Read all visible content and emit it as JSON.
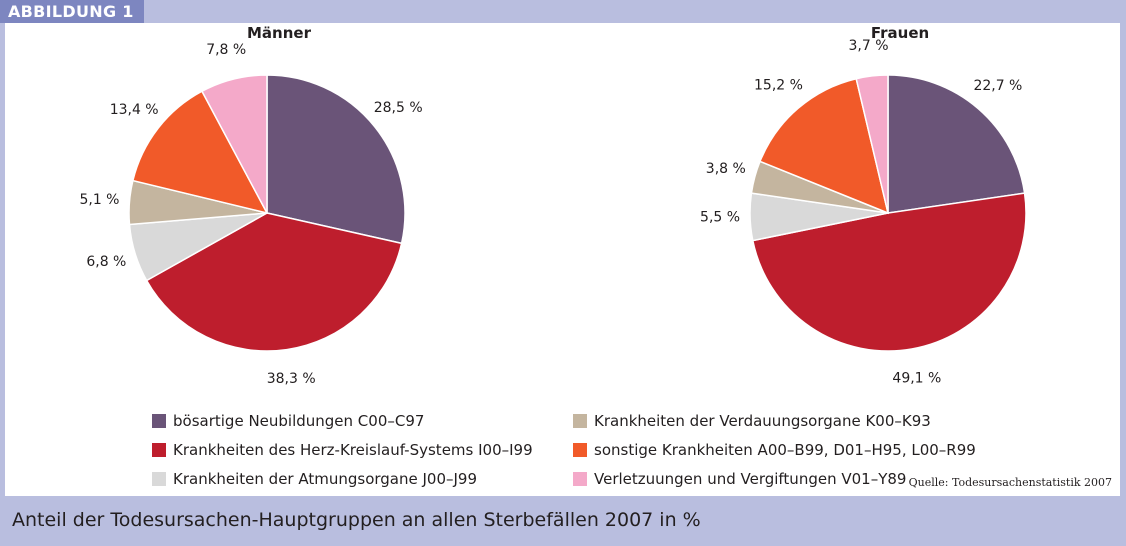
{
  "badge": "ABBILDUNG 1",
  "caption": "Anteil der Todesursachen-Hauptgruppen an allen Sterbefällen 2007 in %",
  "source": "Quelle: Todesursachenstatistik 2007",
  "chart_data": [
    {
      "type": "pie",
      "title": "Männer",
      "unit": "%",
      "slices": [
        {
          "category": "bösartige Neubildungen C00–C97",
          "value": 28.5,
          "label": "28,5 %"
        },
        {
          "category": "Krankheiten des Herz-Kreislauf-Systems I00–I99",
          "value": 38.3,
          "label": "38,3 %"
        },
        {
          "category": "Krankheiten der Atmungsorgane J00–J99",
          "value": 6.8,
          "label": "6,8 %"
        },
        {
          "category": "Krankheiten der Verdauungsorgane K00–K93",
          "value": 5.1,
          "label": "5,1 %"
        },
        {
          "category": "sonstige Krankheiten A00–B99, D01–H95, L00–R99",
          "value": 13.4,
          "label": "13,4 %"
        },
        {
          "category": "Verletzuungen und Vergiftungen V01–Y89",
          "value": 7.8,
          "label": "7,8 %"
        }
      ]
    },
    {
      "type": "pie",
      "title": "Frauen",
      "unit": "%",
      "slices": [
        {
          "category": "bösartige Neubildungen C00–C97",
          "value": 22.7,
          "label": "22,7 %"
        },
        {
          "category": "Krankheiten des Herz-Kreislauf-Systems I00–I99",
          "value": 49.1,
          "label": "49,1 %"
        },
        {
          "category": "Krankheiten der Atmungsorgane J00–J99",
          "value": 5.5,
          "label": "5,5 %"
        },
        {
          "category": "Krankheiten der Verdauungsorgane K00–K93",
          "value": 3.8,
          "label": "3,8 %"
        },
        {
          "category": "sonstige Krankheiten A00–B99, D01–H95, L00–R99",
          "value": 15.2,
          "label": "15,2 %"
        },
        {
          "category": "Verletzuungen und Vergiftungen V01–Y89",
          "value": 3.7,
          "label": "3,7 %"
        }
      ]
    }
  ],
  "legend": [
    {
      "label": "bösartige Neubildungen C00–C97",
      "color": "#6a5478"
    },
    {
      "label": "Krankheiten des Herz-Kreislauf-Systems I00–I99",
      "color": "#be1e2d"
    },
    {
      "label": "Krankheiten der Atmungsorgane J00–J99",
      "color": "#d9d9d9"
    },
    {
      "label": "Krankheiten der Verdauungsorgane K00–K93",
      "color": "#c4b59f"
    },
    {
      "label": "sonstige Krankheiten A00–B99, D01–H95, L00–R99",
      "color": "#f15a29"
    },
    {
      "label": "Verletzuungen und Vergiftungen V01–Y89",
      "color": "#f4a9c9"
    }
  ]
}
